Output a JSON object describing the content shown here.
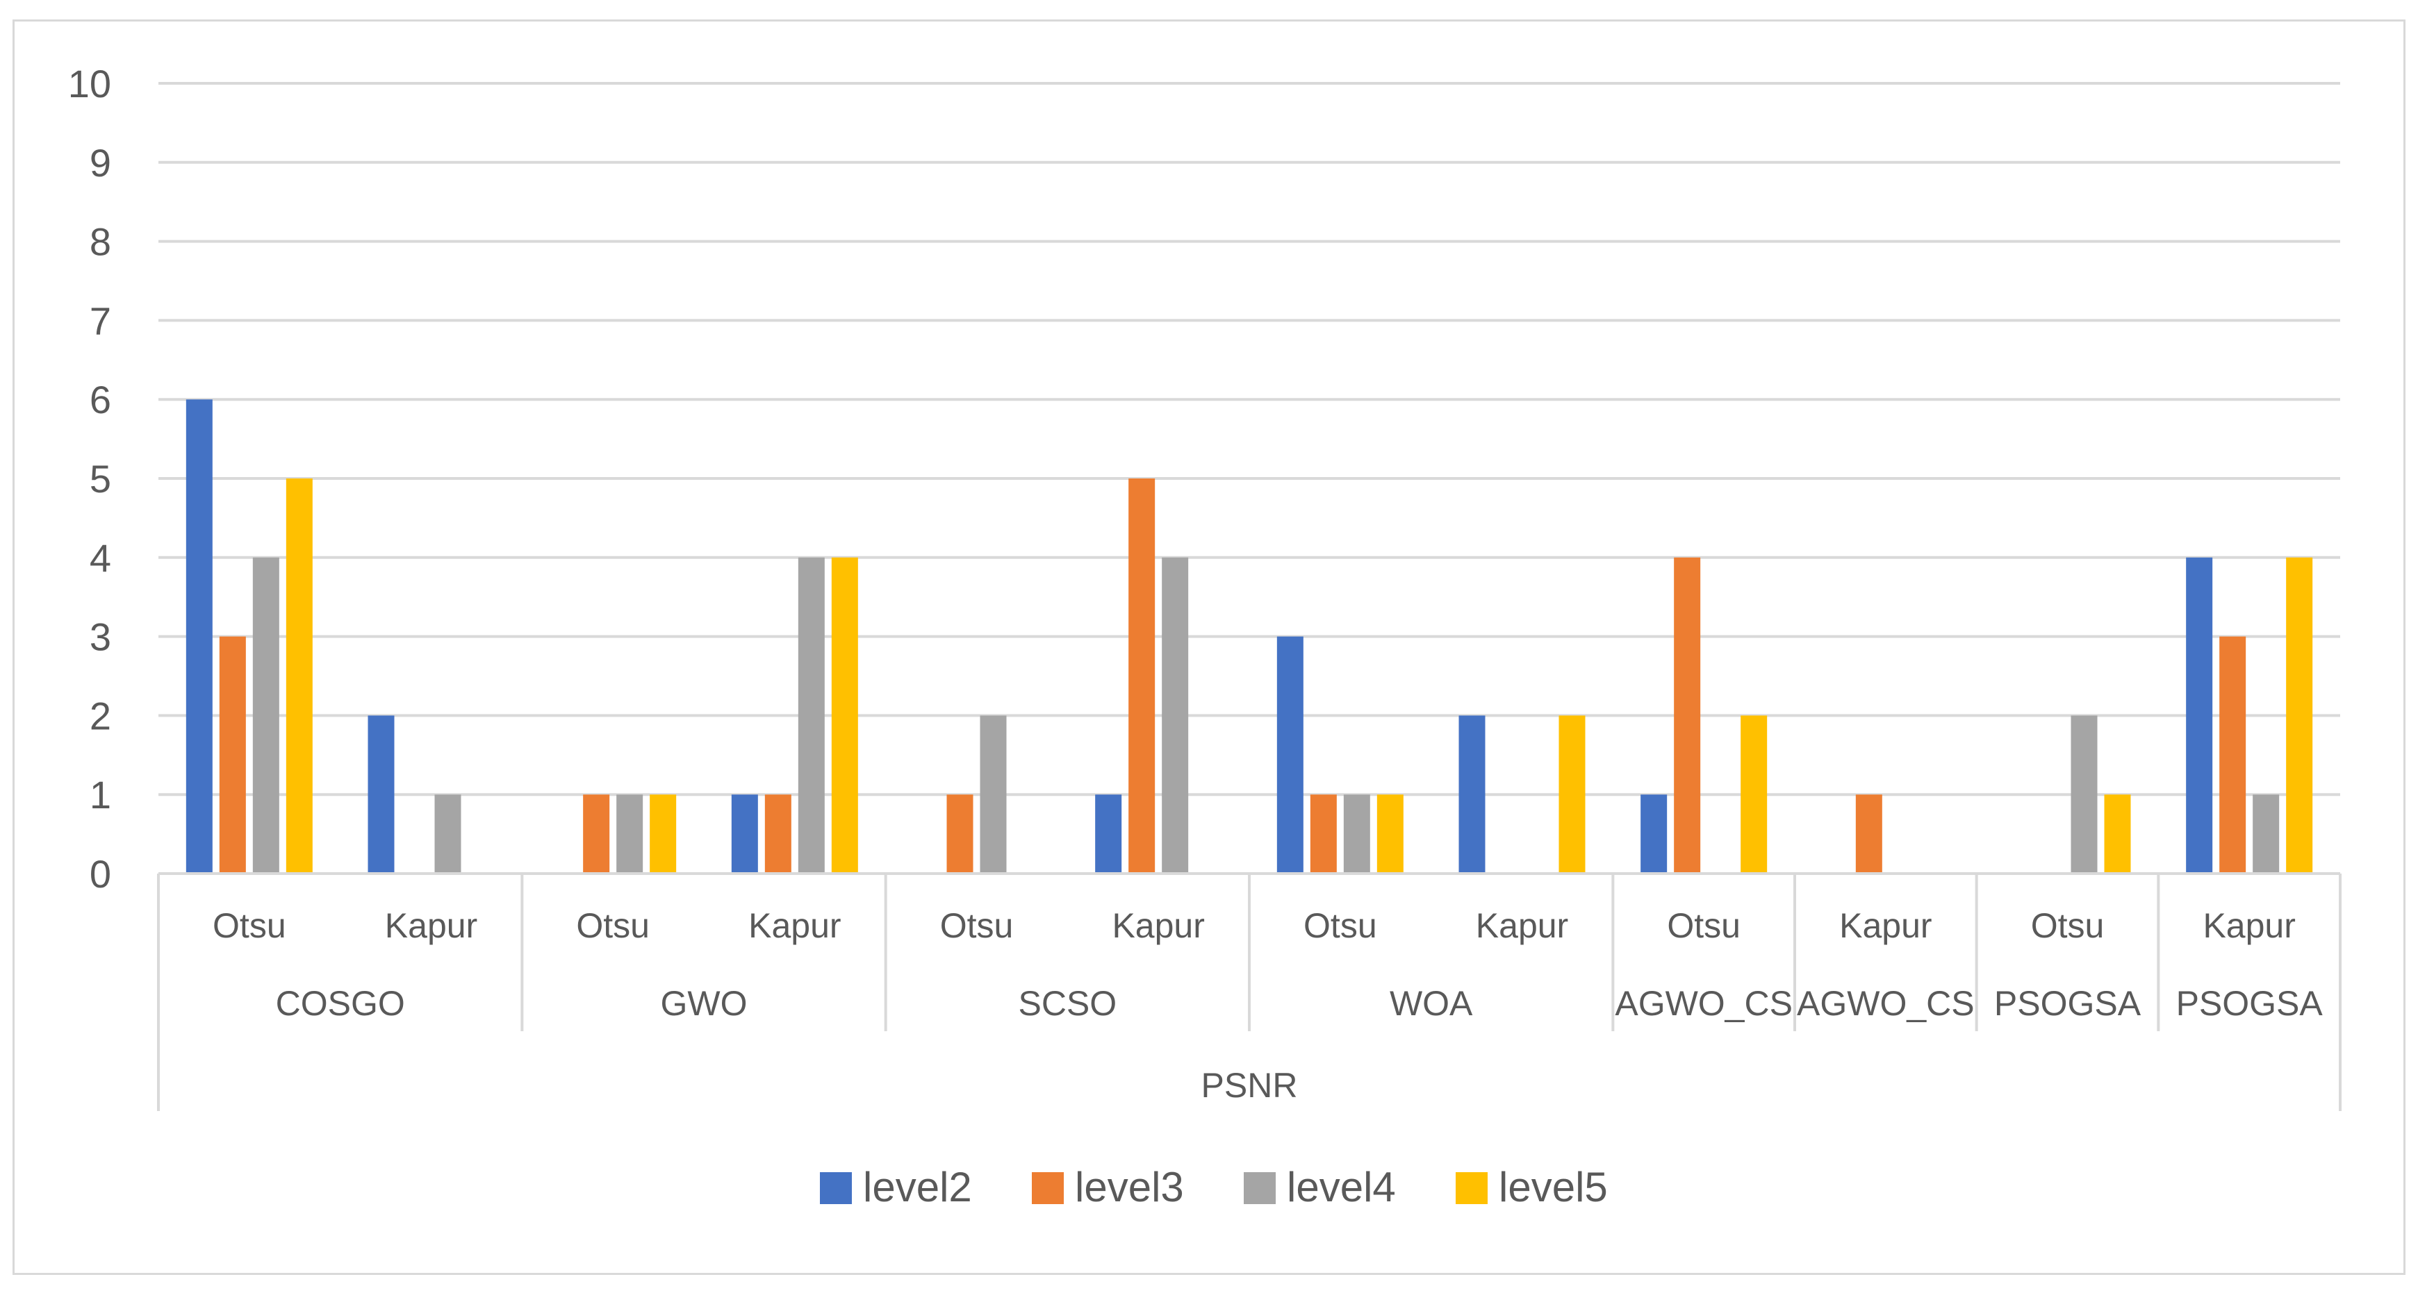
{
  "chart_data": {
    "type": "bar",
    "title": "",
    "xlabel": "",
    "ylabel": "",
    "ylim": [
      0,
      10
    ],
    "yticks": [
      "0",
      "1",
      "2",
      "3",
      "4",
      "5",
      "6",
      "7",
      "8",
      "9",
      "10"
    ],
    "grid": true,
    "legend_position": "bottom",
    "outer_group": "PSNR",
    "groups": [
      {
        "name": "COSGO",
        "categories": [
          "Otsu",
          "Kapur"
        ]
      },
      {
        "name": "GWO",
        "categories": [
          "Otsu",
          "Kapur"
        ]
      },
      {
        "name": "SCSO",
        "categories": [
          "Otsu",
          "Kapur"
        ]
      },
      {
        "name": "WOA",
        "categories": [
          "Otsu",
          "Kapur"
        ]
      },
      {
        "name": "AGWO_CS",
        "categories": [
          "Otsu"
        ]
      },
      {
        "name": "AGWO_CS",
        "categories": [
          "Kapur"
        ]
      },
      {
        "name": "PSOGSA",
        "categories": [
          "Otsu"
        ]
      },
      {
        "name": "PSOGSA",
        "categories": [
          "Kapur"
        ]
      }
    ],
    "categories": [
      "Otsu",
      "Kapur",
      "Otsu",
      "Kapur",
      "Otsu",
      "Kapur",
      "Otsu",
      "Kapur",
      "Otsu",
      "Kapur",
      "Otsu",
      "Kapur"
    ],
    "series": [
      {
        "name": "level2",
        "color": "#4472c4",
        "values": [
          6,
          2,
          0,
          1,
          0,
          1,
          3,
          2,
          1,
          0,
          0,
          4
        ]
      },
      {
        "name": "level3",
        "color": "#ed7d31",
        "values": [
          3,
          0,
          1,
          1,
          1,
          5,
          1,
          0,
          4,
          1,
          0,
          3
        ]
      },
      {
        "name": "level4",
        "color": "#a5a5a5",
        "values": [
          4,
          1,
          1,
          4,
          2,
          4,
          1,
          0,
          0,
          0,
          2,
          1
        ]
      },
      {
        "name": "level5",
        "color": "#ffc000",
        "values": [
          5,
          0,
          1,
          4,
          0,
          0,
          1,
          2,
          2,
          0,
          1,
          4
        ]
      }
    ]
  }
}
